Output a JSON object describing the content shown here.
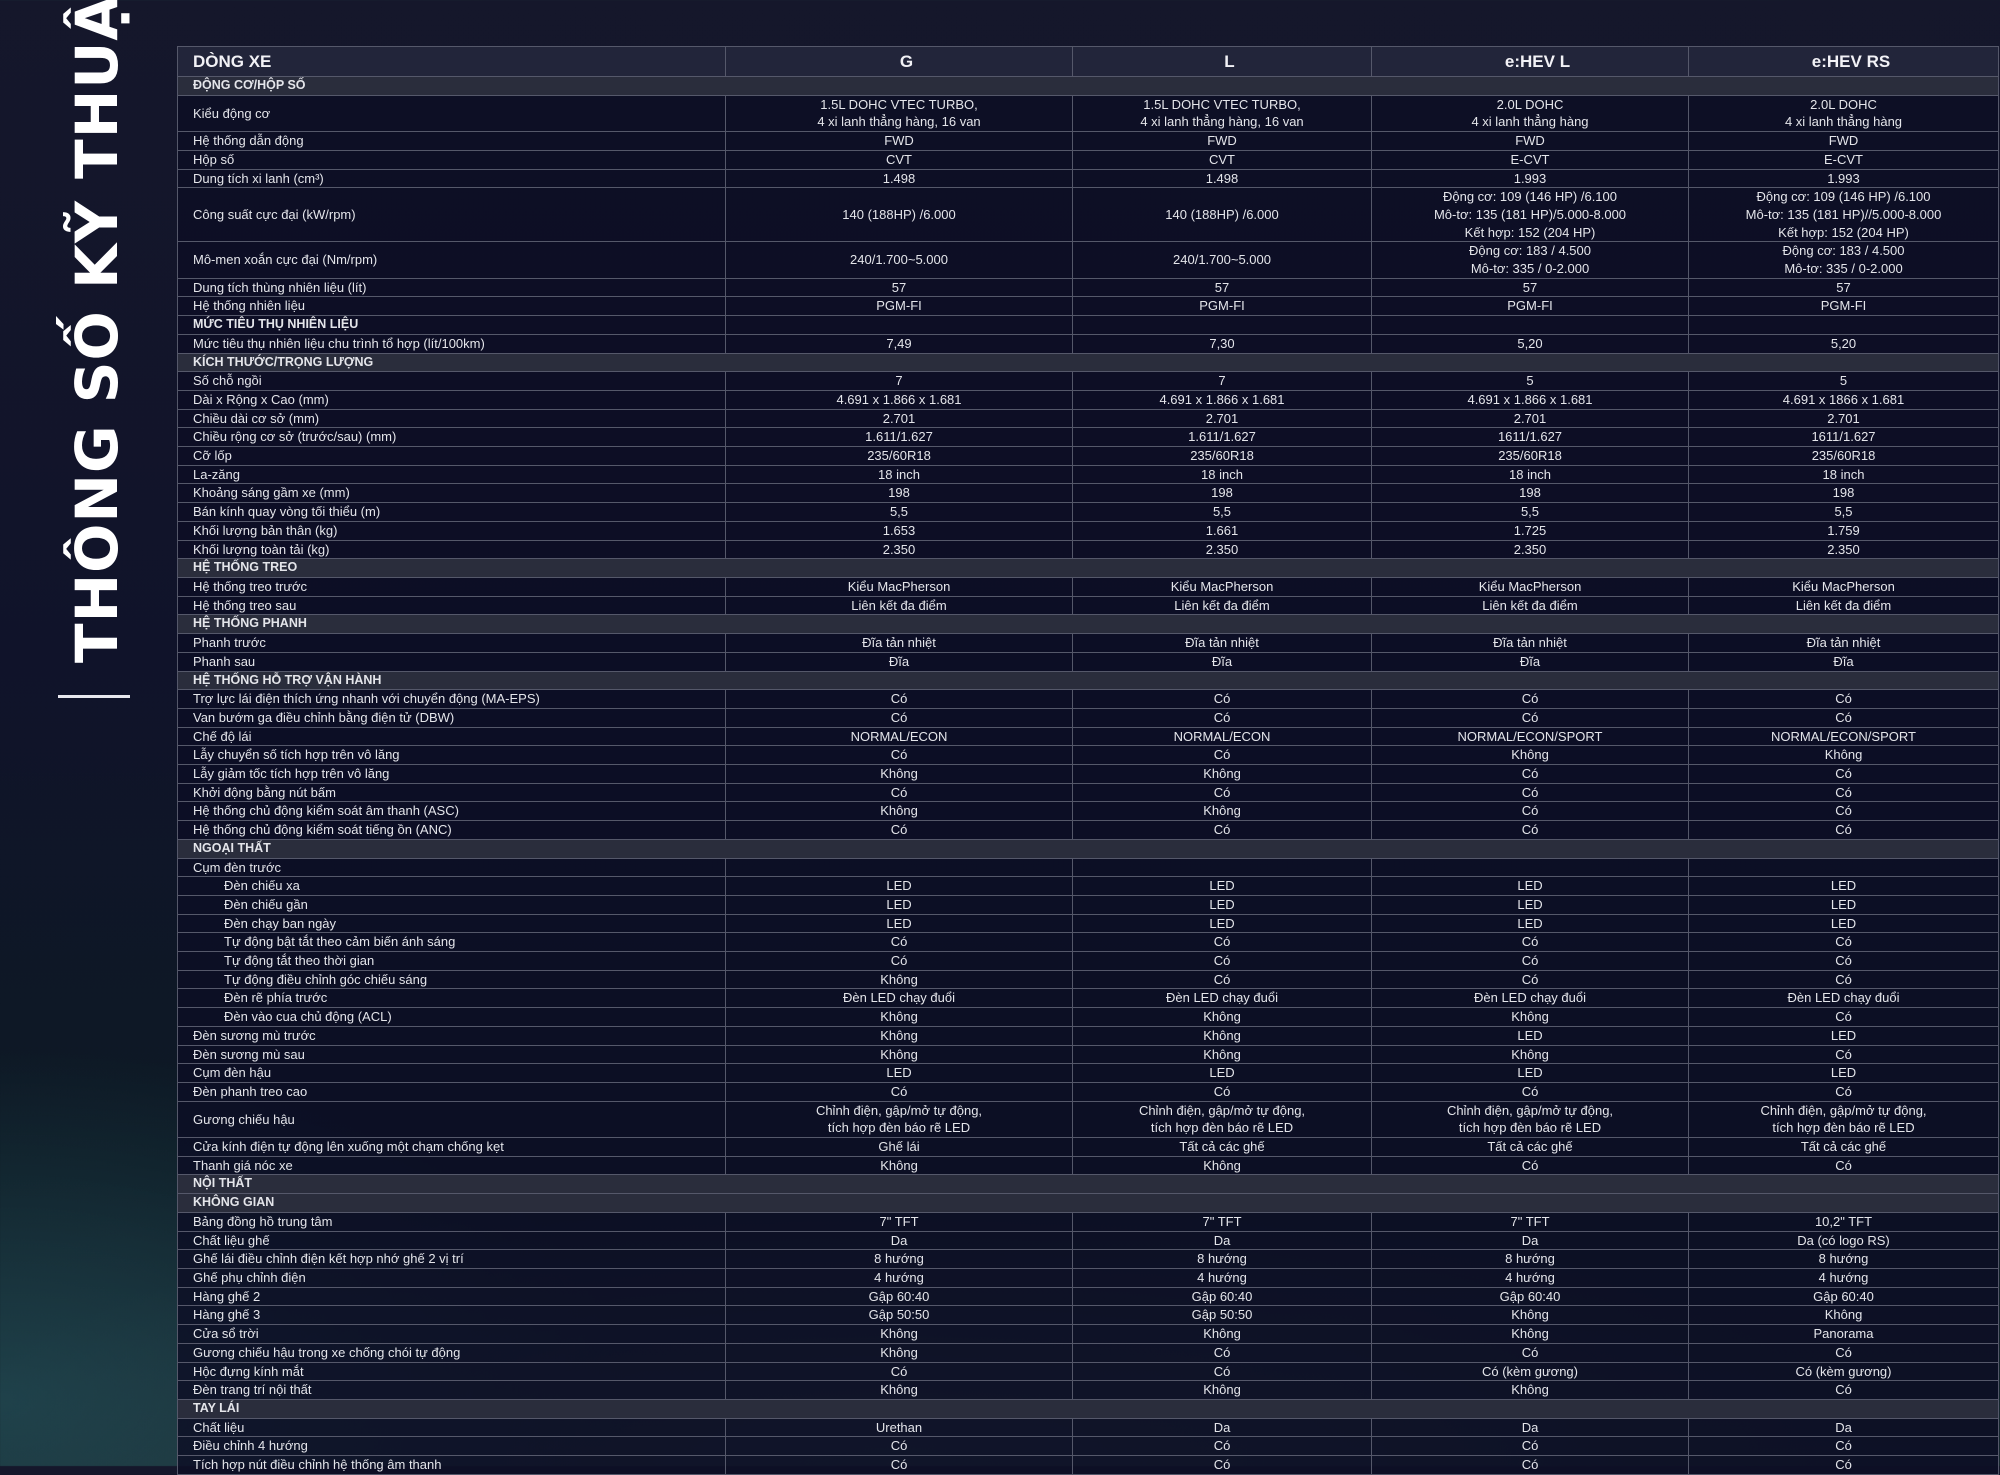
{
  "side_title": "THÔNG SỐ KỸ THUẬT",
  "header": {
    "label": "DÒNG XE",
    "models": [
      "G",
      "L",
      "e:HEV L",
      "e:HEV RS"
    ]
  },
  "rows": [
    {
      "type": "section",
      "label": "ĐỘNG CƠ/HỘP SỐ"
    },
    {
      "label": "Kiểu động cơ",
      "lines": 2,
      "values": [
        "1.5L DOHC VTEC TURBO,\n4 xi lanh thẳng hàng, 16 van",
        "1.5L DOHC VTEC TURBO,\n4 xi lanh thẳng hàng, 16 van",
        "2.0L DOHC\n4 xi lanh thẳng hàng",
        "2.0L DOHC\n4 xi lanh thẳng hàng"
      ]
    },
    {
      "label": "Hệ thống dẫn động",
      "values": [
        "FWD",
        "FWD",
        "FWD",
        "FWD"
      ]
    },
    {
      "label": "Hộp số",
      "values": [
        "CVT",
        "CVT",
        "E-CVT",
        "E-CVT"
      ]
    },
    {
      "label": "Dung tích xi lanh (cm³)",
      "values": [
        "1.498",
        "1.498",
        "1.993",
        "1.993"
      ]
    },
    {
      "label": "Công suất cực đại (kW/rpm)",
      "lines": 3,
      "values": [
        "140 (188HP) /6.000",
        "140 (188HP) /6.000",
        "Động cơ: 109 (146 HP) /6.100\nMô-tơ: 135 (181 HP)/5.000-8.000\nKết hợp: 152 (204 HP)",
        "Động cơ: 109 (146 HP) /6.100\nMô-tơ: 135 (181 HP)//5.000-8.000\nKết hợp: 152 (204 HP)"
      ]
    },
    {
      "label": "Mô-men xoắn cực đại (Nm/rpm)",
      "lines": 2,
      "values": [
        "240/1.700~5.000",
        "240/1.700~5.000",
        "Động cơ: 183 / 4.500\nMô-tơ: 335 / 0-2.000",
        "Động cơ: 183 / 4.500\nMô-tơ: 335 / 0-2.000"
      ]
    },
    {
      "label": "Dung tích thùng nhiên liệu (lít)",
      "values": [
        "57",
        "57",
        "57",
        "57"
      ]
    },
    {
      "label": "Hệ thống nhiên liệu",
      "values": [
        "PGM-FI",
        "PGM-FI",
        "PGM-FI",
        "PGM-FI"
      ]
    },
    {
      "type": "subhead",
      "label": "MỨC TIÊU THỤ NHIÊN LIỆU",
      "values": [
        "",
        "",
        "",
        ""
      ]
    },
    {
      "label": "Mức tiêu thụ nhiên liệu chu trình tổ hợp (lít/100km)",
      "values": [
        "7,49",
        "7,30",
        "5,20",
        "5,20"
      ]
    },
    {
      "type": "section",
      "label": "KÍCH THƯỚC/TRỌNG LƯỢNG"
    },
    {
      "label": "Số chỗ ngồi",
      "values": [
        "7",
        "7",
        "5",
        "5"
      ]
    },
    {
      "label": "Dài x Rộng x Cao (mm)",
      "values": [
        "4.691 x 1.866 x 1.681",
        "4.691 x 1.866 x 1.681",
        "4.691 x 1.866 x 1.681",
        "4.691 x 1866 x 1.681"
      ]
    },
    {
      "label": "Chiều dài cơ sở (mm)",
      "values": [
        "2.701",
        "2.701",
        "2.701",
        "2.701"
      ]
    },
    {
      "label": "Chiều rộng cơ sở (trước/sau) (mm)",
      "values": [
        "1.611/1.627",
        "1.611/1.627",
        "1611/1.627",
        "1611/1.627"
      ]
    },
    {
      "label": "Cỡ lốp",
      "values": [
        "235/60R18",
        "235/60R18",
        "235/60R18",
        "235/60R18"
      ]
    },
    {
      "label": "La-zăng",
      "values": [
        "18 inch",
        "18 inch",
        "18 inch",
        "18 inch"
      ]
    },
    {
      "label": "Khoảng sáng gầm xe (mm)",
      "values": [
        "198",
        "198",
        "198",
        "198"
      ]
    },
    {
      "label": "Bán kính quay vòng tối thiểu (m)",
      "values": [
        "5,5",
        "5,5",
        "5,5",
        "5,5"
      ]
    },
    {
      "label": "Khối lượng bản thân (kg)",
      "values": [
        "1.653",
        "1.661",
        "1.725",
        "1.759"
      ]
    },
    {
      "label": "Khối lượng toàn tải (kg)",
      "values": [
        "2.350",
        "2.350",
        "2.350",
        "2.350"
      ]
    },
    {
      "type": "section",
      "label": "HỆ THỐNG TREO"
    },
    {
      "label": "Hệ thống treo trước",
      "values": [
        "Kiểu MacPherson",
        "Kiểu MacPherson",
        "Kiểu MacPherson",
        "Kiểu MacPherson"
      ]
    },
    {
      "label": "Hệ thống treo sau",
      "values": [
        "Liên kết đa điểm",
        "Liên kết đa điểm",
        "Liên kết đa điểm",
        "Liên kết đa điểm"
      ]
    },
    {
      "type": "section",
      "label": "HỆ THỐNG PHANH"
    },
    {
      "label": "Phanh trước",
      "values": [
        "Đĩa tản nhiệt",
        "Đĩa tản nhiệt",
        "Đĩa tản nhiệt",
        "Đĩa tản nhiệt"
      ]
    },
    {
      "label": "Phanh sau",
      "values": [
        "Đĩa",
        "Đĩa",
        "Đĩa",
        "Đĩa"
      ]
    },
    {
      "type": "section",
      "label": "HỆ THỐNG HỖ TRỢ VẬN HÀNH"
    },
    {
      "label": "Trợ lực lái điện thích ứng nhanh với chuyển động (MA-EPS)",
      "values": [
        "Có",
        "Có",
        "Có",
        "Có"
      ]
    },
    {
      "label": "Van bướm ga điều chỉnh bằng điện tử (DBW)",
      "values": [
        "Có",
        "Có",
        "Có",
        "Có"
      ]
    },
    {
      "label": "Chế độ lái",
      "values": [
        "NORMAL/ECON",
        "NORMAL/ECON",
        "NORMAL/ECON/SPORT",
        "NORMAL/ECON/SPORT"
      ]
    },
    {
      "label": "Lẫy chuyển số tích hợp trên vô lăng",
      "values": [
        "Có",
        "Có",
        "Không",
        "Không"
      ]
    },
    {
      "label": "Lẫy giảm tốc tích hợp trên vô lăng",
      "values": [
        "Không",
        "Không",
        "Có",
        "Có"
      ]
    },
    {
      "label": "Khởi động bằng nút bấm",
      "values": [
        "Có",
        "Có",
        "Có",
        "Có"
      ]
    },
    {
      "label": "Hệ thống chủ động kiểm soát âm thanh (ASC)",
      "values": [
        "Không",
        "Không",
        "Có",
        "Có"
      ]
    },
    {
      "label": "Hệ thống chủ động kiểm soát tiếng ồn (ANC)",
      "values": [
        "Có",
        "Có",
        "Có",
        "Có"
      ]
    },
    {
      "type": "section",
      "label": "NGOẠI THẤT"
    },
    {
      "label": "Cụm đèn trước",
      "values": [
        "",
        "",
        "",
        ""
      ]
    },
    {
      "label": "Đèn chiếu xa",
      "indent": true,
      "values": [
        "LED",
        "LED",
        "LED",
        "LED"
      ]
    },
    {
      "label": "Đèn chiếu gần",
      "indent": true,
      "values": [
        "LED",
        "LED",
        "LED",
        "LED"
      ]
    },
    {
      "label": "Đèn chạy ban ngày",
      "indent": true,
      "values": [
        "LED",
        "LED",
        "LED",
        "LED"
      ]
    },
    {
      "label": "Tự động bật tắt theo cảm biến ánh sáng",
      "indent": true,
      "values": [
        "Có",
        "Có",
        "Có",
        "Có"
      ]
    },
    {
      "label": "Tự động tắt theo thời gian",
      "indent": true,
      "values": [
        "Có",
        "Có",
        "Có",
        "Có"
      ]
    },
    {
      "label": "Tự động điều chỉnh góc chiếu sáng",
      "indent": true,
      "values": [
        "Không",
        "Có",
        "Có",
        "Có"
      ]
    },
    {
      "label": "Đèn rẽ phía trước",
      "indent": true,
      "values": [
        "Đèn LED chạy đuổi",
        "Đèn LED chạy đuổi",
        "Đèn LED chạy đuổi",
        "Đèn LED chạy đuổi"
      ]
    },
    {
      "label": "Đèn vào cua chủ động (ACL)",
      "indent": true,
      "values": [
        "Không",
        "Không",
        "Không",
        "Có"
      ]
    },
    {
      "label": "Đèn sương mù trước",
      "values": [
        "Không",
        "Không",
        "LED",
        "LED"
      ]
    },
    {
      "label": "Đèn sương mù sau",
      "values": [
        "Không",
        "Không",
        "Không",
        "Có"
      ]
    },
    {
      "label": "Cụm đèn hậu",
      "values": [
        "LED",
        "LED",
        "LED",
        "LED"
      ]
    },
    {
      "label": "Đèn phanh treo cao",
      "values": [
        "Có",
        "Có",
        "Có",
        "Có"
      ]
    },
    {
      "label": "Gương chiếu hậu",
      "lines": 2,
      "values": [
        "Chỉnh điện, gập/mở tự động,\ntích hợp đèn báo rẽ LED",
        "Chỉnh điện, gập/mở tự động,\ntích hợp đèn báo rẽ LED",
        "Chỉnh điện, gập/mở tự động,\ntích hợp đèn báo rẽ LED",
        "Chỉnh điện, gập/mở tự động,\ntích hợp đèn báo rẽ LED"
      ]
    },
    {
      "label": "Cửa kính điện tự động lên xuống một chạm chống kẹt",
      "values": [
        "Ghế lái",
        "Tất cả các ghế",
        "Tất cả các ghế",
        "Tất cả các ghế"
      ]
    },
    {
      "label": "Thanh giá nóc xe",
      "values": [
        "Không",
        "Không",
        "Có",
        "Có"
      ]
    },
    {
      "type": "section",
      "label": "NỘI THẤT"
    },
    {
      "type": "section",
      "label": "KHÔNG GIAN"
    },
    {
      "label": "Bảng đồng hồ trung tâm",
      "values": [
        "7\" TFT",
        "7\" TFT",
        "7\" TFT",
        "10,2\" TFT"
      ]
    },
    {
      "label": "Chất liệu ghế",
      "values": [
        "Da",
        "Da",
        "Da",
        "Da (có logo RS)"
      ]
    },
    {
      "label": "Ghế lái điều chỉnh điện kết hợp nhớ ghế 2 vị trí",
      "values": [
        "8 hướng",
        "8 hướng",
        "8 hướng",
        "8 hướng"
      ]
    },
    {
      "label": "Ghế phụ chỉnh điện",
      "values": [
        "4 hướng",
        "4 hướng",
        "4 hướng",
        "4 hướng"
      ]
    },
    {
      "label": "Hàng ghế 2",
      "values": [
        "Gập 60:40",
        "Gập 60:40",
        "Gập 60:40",
        "Gập 60:40"
      ]
    },
    {
      "label": "Hàng ghế 3",
      "values": [
        "Gập 50:50",
        "Gập 50:50",
        "Không",
        "Không"
      ]
    },
    {
      "label": "Cửa sổ trời",
      "values": [
        "Không",
        "Không",
        "Không",
        "Panorama"
      ]
    },
    {
      "label": "Gương chiếu hậu trong xe chống chói tự động",
      "values": [
        "Không",
        "Có",
        "Có",
        "Có"
      ]
    },
    {
      "label": "Hộc đựng kính mắt",
      "values": [
        "Có",
        "Có",
        "Có (kèm gương)",
        "Có (kèm gương)"
      ]
    },
    {
      "label": "Đèn trang trí nội thất",
      "values": [
        "Không",
        "Không",
        "Không",
        "Có"
      ]
    },
    {
      "type": "section",
      "label": "TAY LÁI"
    },
    {
      "label": "Chất liệu",
      "values": [
        "Urethan",
        "Da",
        "Da",
        "Da"
      ]
    },
    {
      "label": "Điều chỉnh 4 hướng",
      "values": [
        "Có",
        "Có",
        "Có",
        "Có"
      ]
    },
    {
      "label": "Tích hợp nút điều chỉnh hệ thống âm thanh",
      "values": [
        "Có",
        "Có",
        "Có",
        "Có"
      ]
    }
  ]
}
